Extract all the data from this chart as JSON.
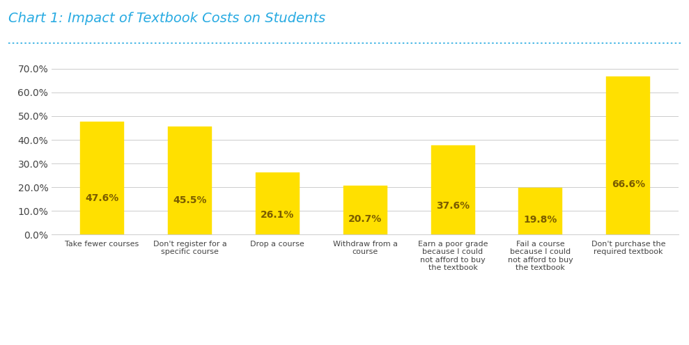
{
  "title": "Chart 1: Impact of Textbook Costs on Students",
  "title_color": "#29ABE2",
  "title_fontsize": 14,
  "categories": [
    "Take fewer courses",
    "Don't register for a\nspecific course",
    "Drop a course",
    "Withdraw from a\ncourse",
    "Earn a poor grade\nbecause I could\nnot afford to buy\nthe textbook",
    "Fail a course\nbecause I could\nnot afford to buy\nthe textbook",
    "Don't purchase the\nrequired textbook"
  ],
  "values": [
    47.6,
    45.5,
    26.1,
    20.7,
    37.6,
    19.8,
    66.6
  ],
  "bar_color": "#FFE000",
  "bar_edge_color": "#FFE000",
  "label_color": "#7A5C00",
  "label_fontsize": 10,
  "ylim": [
    0,
    75
  ],
  "yticks": [
    0,
    10,
    20,
    30,
    40,
    50,
    60,
    70
  ],
  "ytick_labels": [
    "0.0%",
    "10.0%",
    "20.0%",
    "30.0%",
    "40.0%",
    "50.0%",
    "60.0%",
    "70.0%"
  ],
  "ylabel_fontsize": 10,
  "xlabel_fontsize": 8,
  "grid_color": "#cccccc",
  "background_color": "#ffffff",
  "divider_color": "#29ABE2",
  "tick_label_color": "#444444",
  "bar_width": 0.5
}
